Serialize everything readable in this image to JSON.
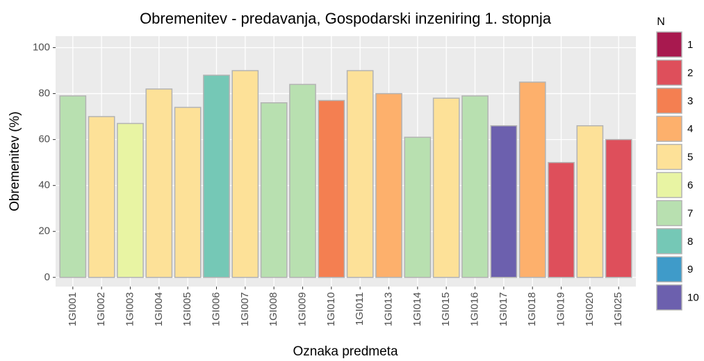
{
  "chart_data": {
    "type": "bar",
    "title": "Obremenitev - predavanja, Gospodarski inzeniring 1. stopnja",
    "x_label": "Oznaka predmeta",
    "y_label": "Obremenitev (%)",
    "categories": [
      "1GI001",
      "1GI002",
      "1GI003",
      "1GI004",
      "1GI005",
      "1GI006",
      "1GI007",
      "1GI008",
      "1GI009",
      "1GI010",
      "1GI011",
      "1GI013",
      "1GI014",
      "1GI015",
      "1GI016",
      "1GI017",
      "1GI018",
      "1GI019",
      "1GI020",
      "1GI025"
    ],
    "values": [
      79,
      70,
      67,
      82,
      74,
      88,
      90,
      76,
      84,
      77,
      90,
      80,
      61,
      78,
      79,
      66,
      85,
      50,
      66,
      60
    ],
    "groups": [
      7,
      5,
      6,
      5,
      5,
      8,
      5,
      7,
      7,
      3,
      5,
      4,
      7,
      5,
      7,
      10,
      4,
      2,
      5,
      2
    ],
    "legend": {
      "title": "N",
      "levels": [
        1,
        2,
        3,
        4,
        5,
        6,
        7,
        8,
        9,
        10
      ],
      "colors": [
        "#a8194f",
        "#de4f5b",
        "#f47f51",
        "#fdb06c",
        "#fde198",
        "#e8f4a3",
        "#b8e0b0",
        "#75c8b6",
        "#3f9bc9",
        "#6c60ae"
      ]
    },
    "ylim": [
      -4,
      105
    ],
    "yticks": [
      0,
      20,
      40,
      60,
      80,
      100
    ],
    "grid": true
  }
}
